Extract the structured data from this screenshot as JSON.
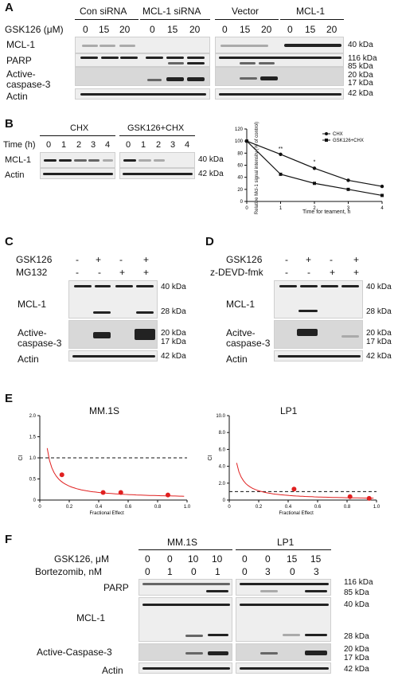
{
  "panelA": {
    "label": "A",
    "groups": [
      "Con siRNA",
      "MCL-1 siRNA",
      "Vector",
      "MCL-1"
    ],
    "treatment": "GSK126 (μM)",
    "doses": [
      "0",
      "15",
      "20",
      "0",
      "15",
      "20",
      "0",
      "15",
      "20",
      "0",
      "15",
      "20"
    ],
    "rows": [
      "MCL-1",
      "PARP",
      "Active-",
      "caspase-3",
      "Actin"
    ],
    "markers": {
      "m40": "40  kDa",
      "m116": "116 kDa",
      "m85": "85  kDa",
      "m20": "20  kDa",
      "m17": "17  kDa",
      "m42": "42  kDa"
    }
  },
  "panelB": {
    "label": "B",
    "groups": [
      "CHX",
      "GSK126+CHX"
    ],
    "time_label": "Time (h)",
    "times": [
      "0",
      "1",
      "2",
      "3",
      "4",
      "0",
      "1",
      "2",
      "3",
      "4"
    ],
    "rows": [
      "MCL-1",
      "Actin"
    ],
    "markers": {
      "m40": "40 kDa",
      "m42": "42 kDa"
    }
  },
  "chart_data": {
    "type": "line",
    "x": [
      0,
      1,
      2,
      3,
      4
    ],
    "xlabel": "Time for teament, h",
    "ylabel": "Relative Mcl-1 signal intensity (% of control)",
    "ylim": [
      0,
      120
    ],
    "xticks": [
      "0",
      "1",
      "2",
      "3",
      "4"
    ],
    "yticks": [
      "0",
      "20",
      "40",
      "60",
      "80",
      "100",
      "120"
    ],
    "legend_position": "top-right",
    "series": [
      {
        "name": "CHX",
        "values": [
          100,
          78,
          55,
          35,
          25
        ]
      },
      {
        "name": "GSK126+CHX",
        "values": [
          100,
          45,
          30,
          20,
          10
        ]
      }
    ],
    "annotations": [
      "**",
      "*"
    ]
  },
  "panelC": {
    "label": "C",
    "row1_label": "GSK126",
    "row1": [
      "-",
      "+",
      "-",
      "+"
    ],
    "row2_label": "MG132",
    "row2": [
      "-",
      "-",
      "+",
      "+"
    ],
    "rows": [
      "MCL-1",
      "Active-",
      "caspase-3",
      "Actin"
    ],
    "markers": {
      "m40": "40 kDa",
      "m28": "28 kDa",
      "m20": "20 kDa",
      "m17": "17 kDa",
      "m42": "42 kDa"
    }
  },
  "panelD": {
    "label": "D",
    "row1_label": "GSK126",
    "row1": [
      "-",
      "+",
      "-",
      "+"
    ],
    "row2_label": "z-DEVD-fmk",
    "row2": [
      "-",
      "-",
      "+",
      "+"
    ],
    "rows": [
      "MCL-1",
      "Acitve-",
      "caspase-3",
      "Actin"
    ],
    "markers": {
      "m40": "40 kDa",
      "m28": "28 kDa",
      "m20": "20 kDa",
      "m17": "17 kDa",
      "m42": "42 kDa"
    }
  },
  "panelE": {
    "label": "E",
    "charts": [
      {
        "title": "MM.1S",
        "ylabel": "CI",
        "xlabel": "Fractional Effect",
        "yticks": [
          "0",
          "0.5",
          "1.0",
          "1.5",
          "2.0"
        ],
        "xticks": [
          "0",
          "0.2",
          "0.4",
          "0.6",
          "0.8",
          "1.0"
        ],
        "ylim": [
          0,
          2
        ],
        "reference_line": 1.0,
        "points": [
          {
            "x": 0.15,
            "y": 0.6
          },
          {
            "x": 0.43,
            "y": 0.18
          },
          {
            "x": 0.55,
            "y": 0.18
          },
          {
            "x": 0.87,
            "y": 0.12
          }
        ]
      },
      {
        "title": "LP1",
        "ylabel": "CI",
        "xlabel": "Fractional Effect",
        "yticks": [
          "0",
          "2.0",
          "4.0",
          "6.0",
          "8.0",
          "10.0"
        ],
        "xticks": [
          "0",
          "0.2",
          "0.4",
          "0.6",
          "0.8",
          "1.0"
        ],
        "ylim": [
          0,
          10
        ],
        "reference_line": 1.0,
        "points": [
          {
            "x": 0.44,
            "y": 1.3
          },
          {
            "x": 0.82,
            "y": 0.4
          },
          {
            "x": 0.95,
            "y": 0.2
          }
        ]
      }
    ],
    "curve_color": "#e02020",
    "point_color": "#e02020"
  },
  "panelF": {
    "label": "F",
    "groups": [
      "MM.1S",
      "LP1"
    ],
    "gsk_label": "GSK126, μM",
    "gsk": [
      "0",
      "0",
      "10",
      "10",
      "0",
      "0",
      "15",
      "15"
    ],
    "bort_label": "Bortezomib, nM",
    "bort": [
      "0",
      "1",
      "0",
      "1",
      "0",
      "3",
      "0",
      "3"
    ],
    "rows": [
      "PARP",
      "MCL-1",
      "Active-Caspase-3",
      "Actin"
    ],
    "markers": {
      "m116": "116 kDa",
      "m85": "85  kDa",
      "m40": "40  kDa",
      "m28": "28  kDa",
      "m20": "20  kDa",
      "m17": "17  kDa",
      "m42": "42  kDa"
    }
  }
}
